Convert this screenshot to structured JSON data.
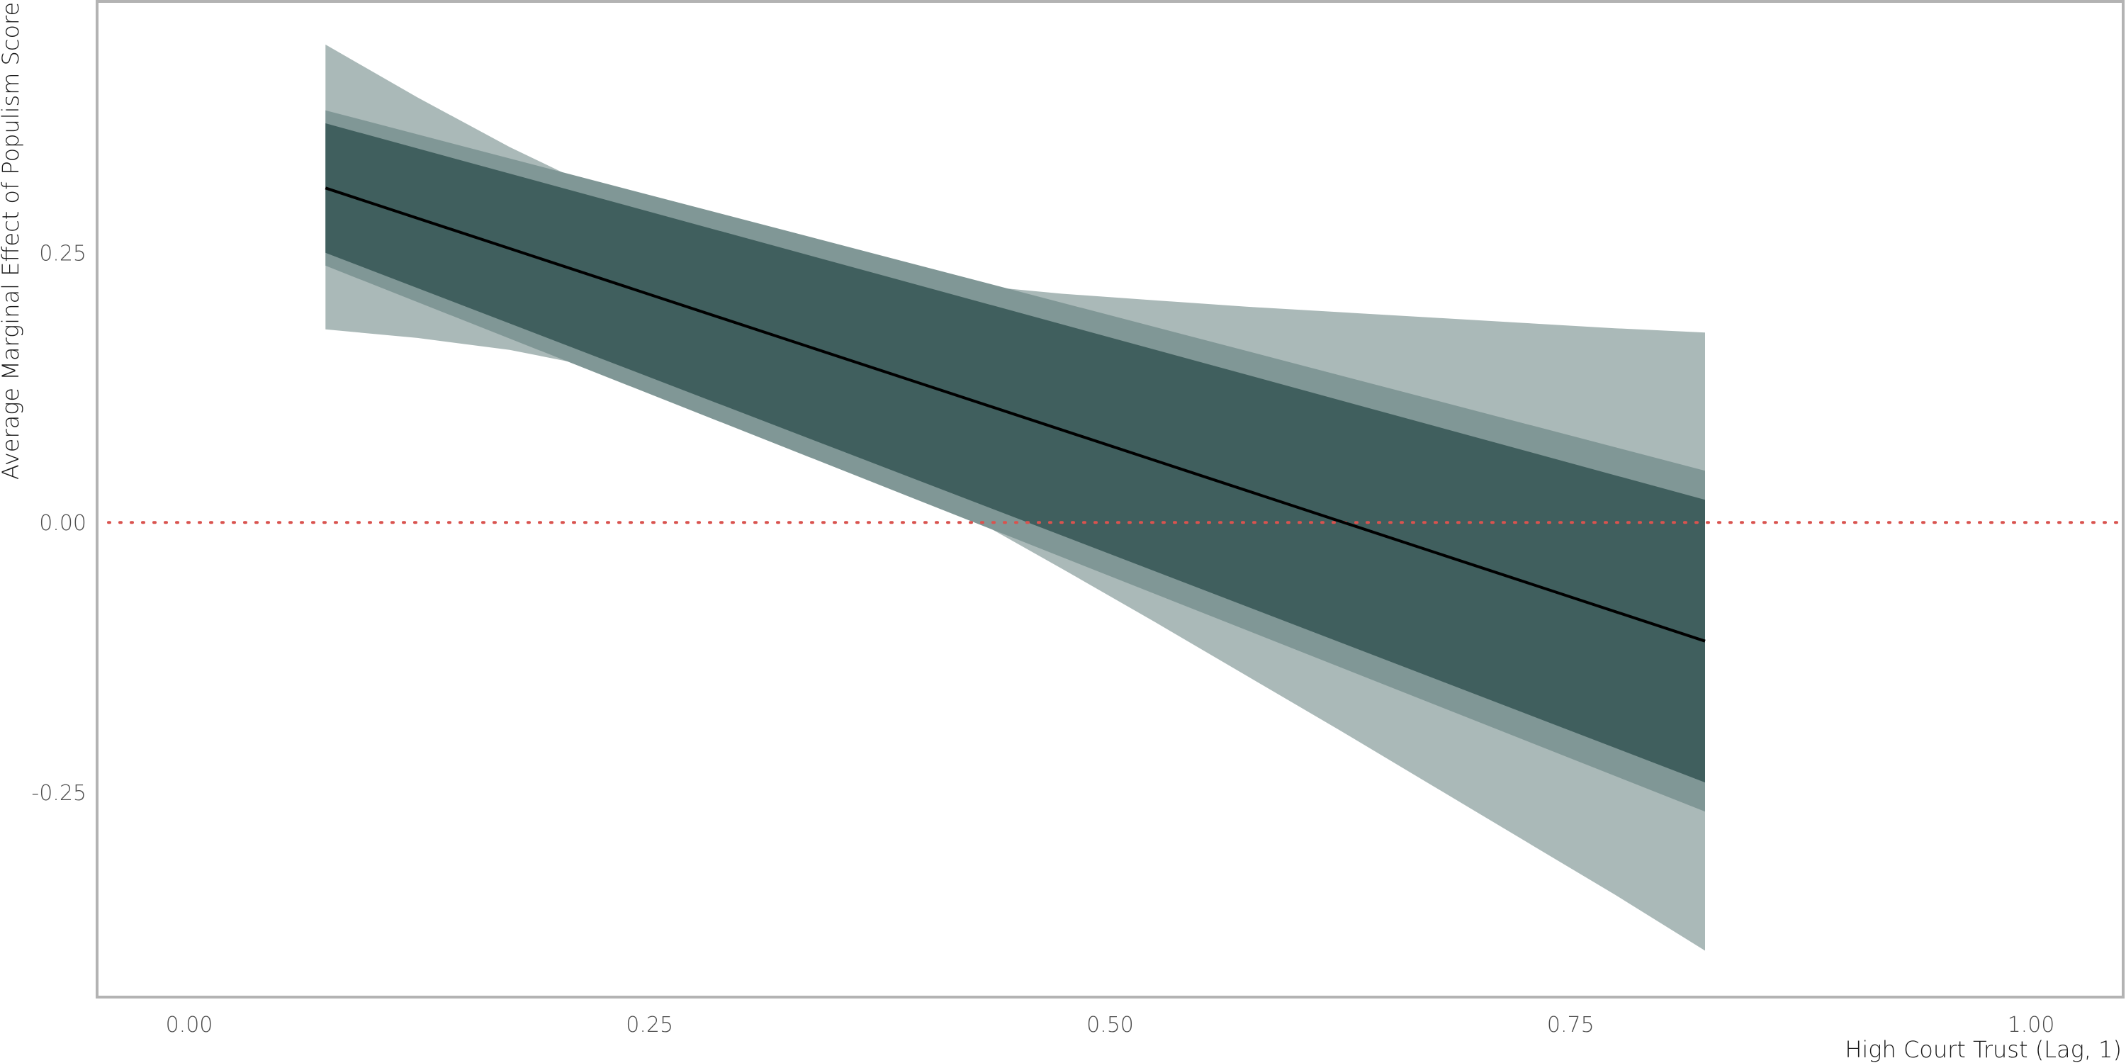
{
  "chart_data": {
    "type": "line",
    "title": "",
    "xlabel": "High Court Trust (Lag, 1)",
    "ylabel": "Average Marginal Effect of Populism Score",
    "xlim": [
      -0.05,
      1.05
    ],
    "ylim": [
      -0.44,
      0.483
    ],
    "x_ticks": [
      0.0,
      0.25,
      0.5,
      0.75,
      1.0
    ],
    "x_tick_labels": [
      "0.00",
      "0.25",
      "0.50",
      "0.75",
      "1.00"
    ],
    "y_ticks": [
      0.25,
      0.0,
      -0.25
    ],
    "y_tick_labels": [
      "0.25",
      "0.00",
      "-0.25"
    ],
    "reference_line": {
      "y": 0.0,
      "style": "dotted",
      "color": "#d9534f"
    },
    "series": [
      {
        "type": "line",
        "color": "#000000",
        "x": [
          0.074,
          0.823
        ],
        "y": [
          0.31,
          -0.11
        ]
      }
    ],
    "bands": [
      {
        "color": "#aab9b8",
        "x": [
          0.074,
          0.124,
          0.174,
          0.224,
          0.274,
          0.324,
          0.374,
          0.424,
          0.474,
          0.524,
          0.574,
          0.624,
          0.674,
          0.724,
          0.774,
          0.823
        ],
        "upper": [
          0.443,
          0.394,
          0.348,
          0.307,
          0.273,
          0.248,
          0.231,
          0.22,
          0.212,
          0.206,
          0.2,
          0.195,
          0.19,
          0.185,
          0.18,
          0.176
        ],
        "lower": [
          0.179,
          0.171,
          0.16,
          0.143,
          0.12,
          0.089,
          0.05,
          0.005,
          -0.043,
          -0.092,
          -0.142,
          -0.192,
          -0.243,
          -0.294,
          -0.345,
          -0.397
        ]
      },
      {
        "color": "#809796",
        "x": [
          0.074,
          0.823
        ],
        "upper": [
          0.382,
          0.048
        ],
        "lower": [
          0.238,
          -0.268
        ]
      },
      {
        "color": "#405f5e",
        "x": [
          0.074,
          0.823
        ],
        "upper": [
          0.37,
          0.021
        ],
        "lower": [
          0.25,
          -0.241
        ]
      }
    ],
    "grid": false,
    "legend": "none"
  },
  "colors": {
    "panel_border": "#b3b3b3",
    "tick_text": "#4d4d4d",
    "axis_title_text": "#1a1a1a"
  }
}
